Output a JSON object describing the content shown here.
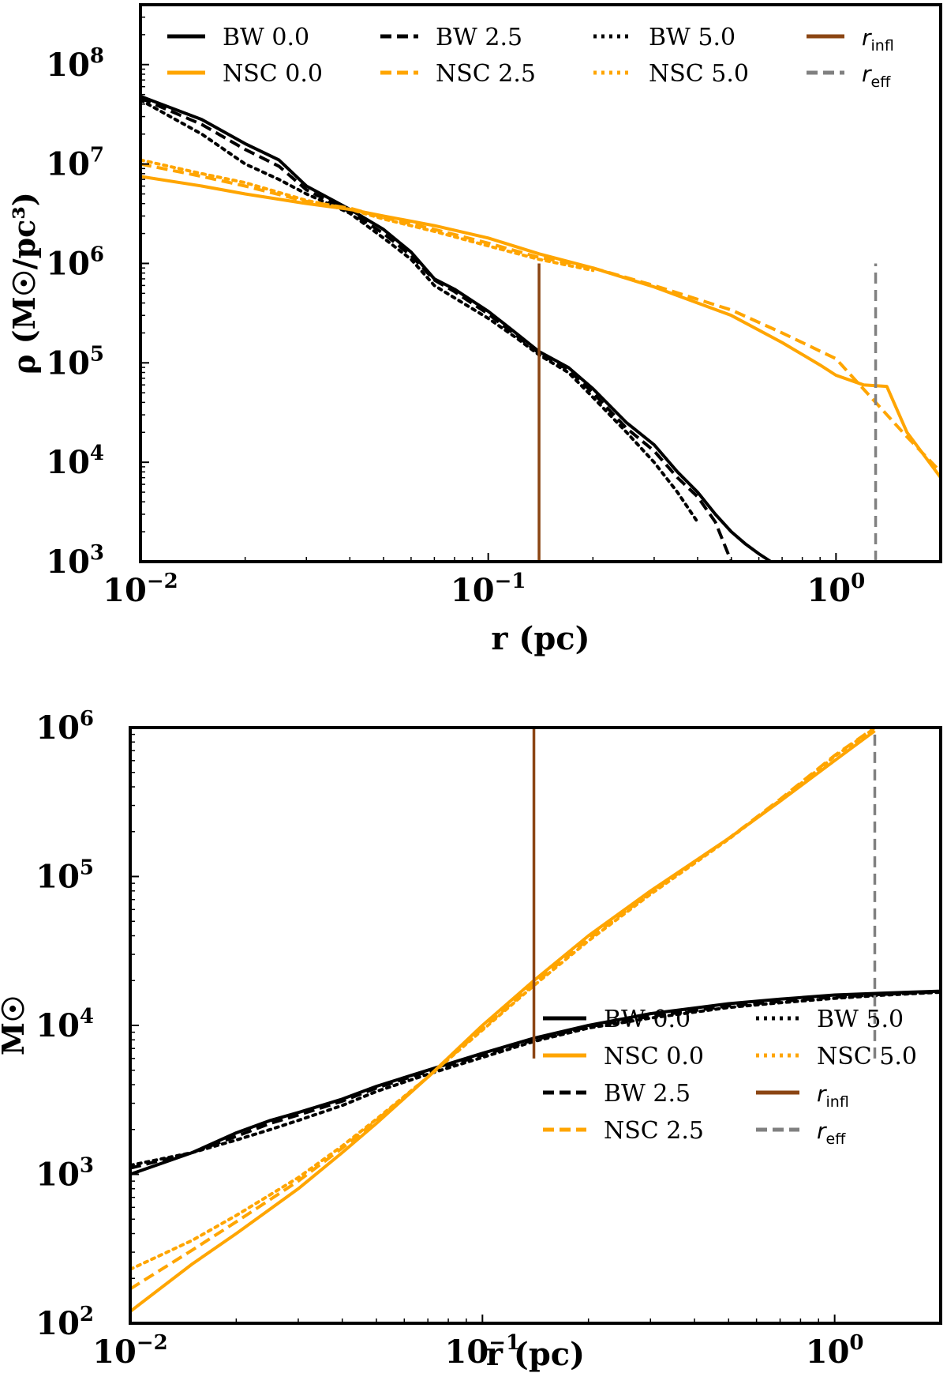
{
  "colors": {
    "bw": "#000000",
    "nsc": "#ffa500",
    "r_infl": "#8b4513",
    "r_eff": "#808080"
  },
  "chart_data": [
    {
      "type": "line",
      "xscale": "log",
      "yscale": "log",
      "xlabel": "r (pc)",
      "ylabel": "ρ (M☉/pc³)",
      "xlim": [
        0.01,
        2.0
      ],
      "ylim": [
        1000,
        400000000
      ],
      "xticks": [
        {
          "value": 0.01,
          "base": "10",
          "exp": "−2"
        },
        {
          "value": 0.1,
          "base": "10",
          "exp": "−1"
        },
        {
          "value": 1,
          "base": "10",
          "exp": "0"
        }
      ],
      "yticks": [
        {
          "value": 1000,
          "base": "10",
          "exp": "3"
        },
        {
          "value": 10000,
          "base": "10",
          "exp": "4"
        },
        {
          "value": 100000,
          "base": "10",
          "exp": "5"
        },
        {
          "value": 1000000,
          "base": "10",
          "exp": "6"
        },
        {
          "value": 10000000,
          "base": "10",
          "exp": "7"
        },
        {
          "value": 100000000,
          "base": "10",
          "exp": "8"
        }
      ],
      "legend_position": "top",
      "vlines": [
        {
          "name": "r_infl",
          "x": 0.14,
          "ymin": 1000,
          "ymax": 1000000,
          "style": "solid"
        },
        {
          "name": "r_eff",
          "x": 1.3,
          "ymin": 1000,
          "ymax": 1000000,
          "style": "dashed"
        }
      ],
      "series": [
        {
          "name": "BW 0.0",
          "group": "bw",
          "style": "solid",
          "x": [
            0.01,
            0.015,
            0.02,
            0.025,
            0.03,
            0.04,
            0.05,
            0.06,
            0.07,
            0.08,
            0.1,
            0.12,
            0.14,
            0.17,
            0.2,
            0.25,
            0.3,
            0.35,
            0.4,
            0.45,
            0.5,
            0.55,
            0.6,
            0.65
          ],
          "y": [
            48000000,
            28000000,
            16000000,
            11000000,
            6000000,
            3500000,
            2200000,
            1300000,
            700000,
            550000,
            330000,
            200000,
            130000,
            90000,
            55000,
            25000,
            15000,
            8000,
            5000,
            3000,
            2000,
            1500,
            1200,
            1000
          ]
        },
        {
          "name": "BW 2.5",
          "group": "bw",
          "style": "dashed",
          "x": [
            0.01,
            0.015,
            0.02,
            0.025,
            0.03,
            0.04,
            0.05,
            0.06,
            0.07,
            0.08,
            0.1,
            0.12,
            0.14,
            0.17,
            0.2,
            0.25,
            0.3,
            0.35,
            0.4,
            0.45,
            0.5
          ],
          "y": [
            46000000,
            25000000,
            14000000,
            9500000,
            5500000,
            3300000,
            2000000,
            1200000,
            680000,
            520000,
            310000,
            190000,
            125000,
            85000,
            50000,
            22000,
            13000,
            7000,
            4500,
            2500,
            1000
          ]
        },
        {
          "name": "BW 5.0",
          "group": "bw",
          "style": "dotted",
          "x": [
            0.01,
            0.015,
            0.02,
            0.025,
            0.03,
            0.04,
            0.05,
            0.06,
            0.07,
            0.08,
            0.1,
            0.12,
            0.14,
            0.17,
            0.2,
            0.25,
            0.3,
            0.35,
            0.4
          ],
          "y": [
            44000000,
            20000000,
            10000000,
            7000000,
            5000000,
            3200000,
            1800000,
            1100000,
            600000,
            450000,
            280000,
            180000,
            120000,
            80000,
            45000,
            20000,
            10000,
            5000,
            2500
          ]
        },
        {
          "name": "NSC 0.0",
          "group": "nsc",
          "style": "solid",
          "x": [
            0.01,
            0.015,
            0.02,
            0.03,
            0.04,
            0.05,
            0.07,
            0.1,
            0.14,
            0.2,
            0.3,
            0.5,
            0.7,
            0.9,
            1.0,
            1.2,
            1.4,
            1.6,
            2.0
          ],
          "y": [
            7500000,
            6000000,
            5000000,
            4000000,
            3500000,
            3000000,
            2400000,
            1800000,
            1250000,
            900000,
            580000,
            300000,
            160000,
            95000,
            75000,
            60000,
            58000,
            20000,
            7000
          ]
        },
        {
          "name": "NSC 2.5",
          "group": "nsc",
          "style": "dashed",
          "x": [
            0.01,
            0.015,
            0.02,
            0.03,
            0.04,
            0.05,
            0.07,
            0.1,
            0.14,
            0.2,
            0.3,
            0.5,
            0.7,
            1.0,
            1.3,
            1.6,
            2.0
          ],
          "y": [
            10000000,
            7500000,
            6000000,
            4200000,
            3600000,
            2900000,
            2200000,
            1600000,
            1150000,
            900000,
            600000,
            340000,
            200000,
            110000,
            40000,
            18000,
            8000
          ]
        },
        {
          "name": "NSC 5.0",
          "group": "nsc",
          "style": "dotted",
          "x": [
            0.01,
            0.015,
            0.02,
            0.03,
            0.04,
            0.05,
            0.07,
            0.1,
            0.14,
            0.2
          ],
          "y": [
            11000000,
            8000000,
            6500000,
            4300000,
            3500000,
            2800000,
            2100000,
            1500000,
            1100000,
            850000
          ]
        }
      ],
      "legend": {
        "columns": 4,
        "entries": [
          {
            "label": "BW 0.0",
            "key": "BW 0.0"
          },
          {
            "label": "NSC 0.0",
            "key": "NSC 0.0"
          },
          {
            "label": "BW 2.5",
            "key": "BW 2.5"
          },
          {
            "label": "NSC 2.5",
            "key": "NSC 2.5"
          },
          {
            "label": "BW 5.0",
            "key": "BW 5.0"
          },
          {
            "label": "NSC 5.0",
            "key": "NSC 5.0"
          },
          {
            "label": "r",
            "sub": "infl",
            "key": "r_infl"
          },
          {
            "label": "r",
            "sub": "eff",
            "key": "r_eff"
          }
        ]
      }
    },
    {
      "type": "line",
      "xscale": "log",
      "yscale": "log",
      "xlabel": "r (pc)",
      "ylabel": "M☉",
      "xlim": [
        0.01,
        2.0
      ],
      "ylim": [
        100,
        1000000
      ],
      "xticks": [
        {
          "value": 0.01,
          "base": "10",
          "exp": "−2"
        },
        {
          "value": 0.1,
          "base": "10",
          "exp": "−1"
        },
        {
          "value": 1,
          "base": "10",
          "exp": "0"
        }
      ],
      "yticks": [
        {
          "value": 100,
          "base": "10",
          "exp": "2"
        },
        {
          "value": 1000,
          "base": "10",
          "exp": "3"
        },
        {
          "value": 10000,
          "base": "10",
          "exp": "4"
        },
        {
          "value": 100000,
          "base": "10",
          "exp": "5"
        },
        {
          "value": 1000000,
          "base": "10",
          "exp": "6"
        }
      ],
      "legend_position": "lower right",
      "vlines": [
        {
          "name": "r_infl",
          "x": 0.14,
          "ymin": 6000,
          "ymax": 1000000,
          "style": "solid"
        },
        {
          "name": "r_eff",
          "x": 1.3,
          "ymin": 6000,
          "ymax": 1000000,
          "style": "dashed"
        }
      ],
      "series": [
        {
          "name": "BW 0.0",
          "group": "bw",
          "style": "solid",
          "x": [
            0.01,
            0.015,
            0.02,
            0.025,
            0.03,
            0.04,
            0.05,
            0.07,
            0.1,
            0.14,
            0.2,
            0.3,
            0.5,
            0.7,
            1.0,
            1.4,
            2.0
          ],
          "y": [
            1000,
            1400,
            1900,
            2300,
            2600,
            3200,
            3900,
            5000,
            6500,
            8200,
            10000,
            12000,
            14000,
            15000,
            16000,
            16500,
            17000
          ]
        },
        {
          "name": "BW 2.5",
          "group": "bw",
          "style": "dashed",
          "x": [
            0.01,
            0.015,
            0.02,
            0.025,
            0.03,
            0.04,
            0.05,
            0.07,
            0.1,
            0.14,
            0.2,
            0.3,
            0.5,
            0.7,
            1.0,
            1.4,
            2.0
          ],
          "y": [
            1100,
            1400,
            1800,
            2200,
            2500,
            3100,
            3800,
            4900,
            6300,
            8000,
            9800,
            11500,
            13500,
            14500,
            15500,
            16200,
            16800
          ]
        },
        {
          "name": "BW 5.0",
          "group": "bw",
          "style": "dotted",
          "x": [
            0.01,
            0.015,
            0.02,
            0.025,
            0.03,
            0.04,
            0.05,
            0.07,
            0.1,
            0.14,
            0.2,
            0.3,
            0.5,
            0.7,
            1.0,
            1.4,
            2.0
          ],
          "y": [
            1150,
            1400,
            1700,
            2000,
            2300,
            2900,
            3600,
            4700,
            6100,
            7800,
            9600,
            11200,
            13200,
            14200,
            15200,
            16000,
            16700
          ]
        },
        {
          "name": "NSC 0.0",
          "group": "nsc",
          "style": "solid",
          "x": [
            0.01,
            0.015,
            0.02,
            0.03,
            0.04,
            0.05,
            0.07,
            0.1,
            0.14,
            0.2,
            0.3,
            0.5,
            0.7,
            1.0,
            1.3
          ],
          "y": [
            120,
            250,
            400,
            800,
            1400,
            2200,
            4500,
            10000,
            20000,
            40000,
            80000,
            180000,
            320000,
            600000,
            950000
          ]
        },
        {
          "name": "NSC 2.5",
          "group": "nsc",
          "style": "dashed",
          "x": [
            0.01,
            0.015,
            0.02,
            0.03,
            0.04,
            0.05,
            0.07,
            0.1,
            0.14,
            0.2,
            0.3,
            0.5,
            0.7,
            1.0,
            1.3
          ],
          "y": [
            170,
            310,
            480,
            900,
            1500,
            2300,
            4500,
            9500,
            19000,
            38000,
            78000,
            180000,
            330000,
            650000,
            1000000
          ]
        },
        {
          "name": "NSC 5.0",
          "group": "nsc",
          "style": "dotted",
          "x": [
            0.01,
            0.015,
            0.02,
            0.03,
            0.04,
            0.05,
            0.07,
            0.1,
            0.14,
            0.2,
            0.3,
            0.5,
            0.7,
            1.0,
            1.3
          ],
          "y": [
            230,
            360,
            530,
            950,
            1550,
            2350,
            4500,
            9300,
            18500,
            37000,
            76000,
            178000,
            325000,
            640000,
            990000
          ]
        }
      ],
      "legend": {
        "columns": 2,
        "entries": [
          {
            "label": "BW 0.0",
            "key": "BW 0.0"
          },
          {
            "label": "NSC 0.0",
            "key": "NSC 0.0"
          },
          {
            "label": "BW 2.5",
            "key": "BW 2.5"
          },
          {
            "label": "NSC 2.5",
            "key": "NSC 2.5"
          },
          {
            "label": "BW 5.0",
            "key": "BW 5.0"
          },
          {
            "label": "NSC 5.0",
            "key": "NSC 5.0"
          },
          {
            "label": "r",
            "sub": "infl",
            "key": "r_infl"
          },
          {
            "label": "r",
            "sub": "eff",
            "key": "r_eff"
          }
        ]
      }
    }
  ]
}
